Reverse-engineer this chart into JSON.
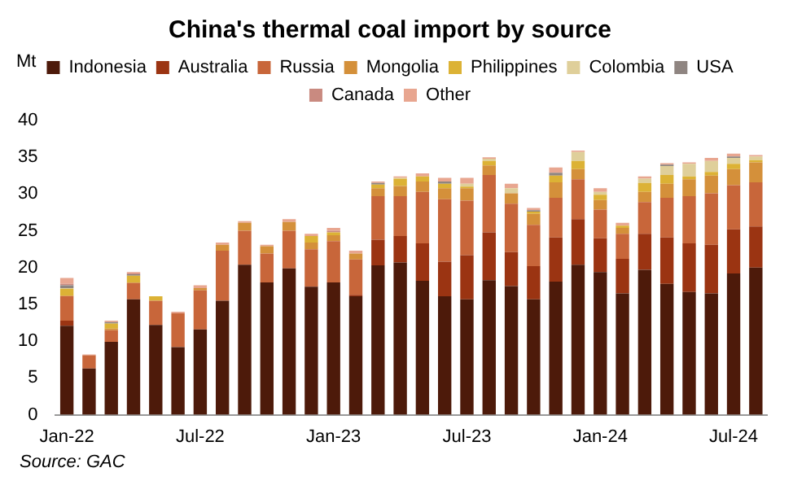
{
  "chart_data": {
    "type": "bar",
    "stacked": true,
    "title": "China's thermal coal import by source",
    "ylabel": "Mt",
    "annotations": [
      "Source: GAC"
    ],
    "categories": [
      "Jan-22",
      null,
      null,
      null,
      null,
      null,
      "Jul-22",
      null,
      null,
      null,
      null,
      null,
      "Jan-23",
      null,
      null,
      null,
      null,
      null,
      "Jul-23",
      null,
      null,
      null,
      null,
      null,
      "Jan-24",
      null,
      null,
      null,
      null,
      null,
      "Jul-24",
      null
    ],
    "ylim": [
      0,
      40
    ],
    "yticks": [
      0,
      5,
      10,
      15,
      20,
      25,
      30,
      35,
      40
    ],
    "grid": false,
    "legend": "top",
    "series": [
      {
        "name": "Indonesia",
        "color": "#4d1a0a",
        "values": [
          12.1,
          6.3,
          9.9,
          15.7,
          12.2,
          9.2,
          11.6,
          15.5,
          20.4,
          18.0,
          19.9,
          17.4,
          18.0,
          16.1,
          20.3,
          20.7,
          18.2,
          16.1,
          15.7,
          18.3,
          17.5,
          15.7,
          18.1,
          20.4,
          19.4,
          16.5,
          19.7,
          17.8,
          16.7,
          16.5,
          19.2,
          20.0
        ]
      },
      {
        "name": "Australia",
        "color": "#9b3412",
        "values": [
          0.7,
          0,
          0,
          0,
          0,
          0,
          0,
          0,
          0,
          0,
          0,
          0,
          0,
          0.2,
          3.5,
          3.6,
          5.1,
          4.7,
          6.0,
          6.5,
          4.6,
          4.5,
          6.0,
          6.2,
          4.6,
          4.7,
          4.9,
          6.3,
          6.6,
          6.6,
          6.0,
          5.6
        ]
      },
      {
        "name": "Russia",
        "color": "#c8663a",
        "values": [
          3.3,
          1.8,
          1.6,
          2.2,
          3.3,
          4.6,
          5.3,
          6.8,
          4.6,
          3.9,
          5.1,
          5.1,
          5.6,
          4.8,
          5.9,
          5.4,
          7.0,
          8.5,
          7.4,
          7.8,
          6.6,
          5.6,
          5.4,
          5.4,
          3.9,
          3.4,
          4.3,
          5.4,
          6.4,
          7.0,
          6.0,
          6.0
        ]
      },
      {
        "name": "Mongolia",
        "color": "#d4903a",
        "values": [
          0.1,
          0,
          0.2,
          0.1,
          0,
          0,
          0.3,
          0.8,
          1.1,
          1.0,
          1.2,
          0.9,
          0.8,
          0.8,
          1.1,
          1.4,
          1.4,
          1.5,
          1.7,
          1.3,
          1.4,
          1.5,
          2.1,
          1.4,
          1.3,
          0.8,
          1.4,
          1.9,
          2.3,
          2.4,
          2.2,
          2.7
        ]
      },
      {
        "name": "Philippines",
        "color": "#dcb235",
        "values": [
          0.9,
          0,
          0.7,
          0.9,
          0.6,
          0,
          0,
          0,
          0,
          0,
          0,
          0.9,
          0.4,
          0,
          0.5,
          1.0,
          0.7,
          0.6,
          0.2,
          0.6,
          0,
          0.3,
          0.9,
          1.1,
          0.7,
          0.3,
          1.2,
          1.2,
          0.4,
          0.5,
          0.7,
          0.3
        ]
      },
      {
        "name": "Colombia",
        "color": "#dfcf9a",
        "values": [
          0.1,
          0,
          0,
          0,
          0,
          0,
          0,
          0,
          0,
          0,
          0,
          0,
          0,
          0,
          0,
          0.1,
          0,
          0,
          0.4,
          0.3,
          0.7,
          0,
          0,
          1.2,
          0.4,
          0,
          0.6,
          1.2,
          1.7,
          1.5,
          0.8,
          0.5
        ]
      },
      {
        "name": "USA",
        "color": "#8f8581",
        "values": [
          0.4,
          0,
          0.2,
          0.2,
          0,
          0,
          0,
          0,
          0,
          0,
          0,
          0,
          0,
          0,
          0.2,
          0,
          0,
          0.3,
          0,
          0,
          0,
          0.2,
          0.4,
          0,
          0,
          0,
          0,
          0.2,
          0,
          0,
          0.2,
          0
        ]
      },
      {
        "name": "Canada",
        "color": "#c98a80",
        "values": [
          0.2,
          0,
          0,
          0.1,
          0,
          0,
          0,
          0,
          0,
          0,
          0,
          0,
          0.2,
          0,
          0,
          0,
          0,
          0,
          0,
          0,
          0,
          0,
          0,
          0,
          0,
          0,
          0,
          0,
          0,
          0,
          0,
          0
        ]
      },
      {
        "name": "Other",
        "color": "#e8a690",
        "values": [
          0.8,
          0.1,
          0.2,
          0.2,
          0,
          0.2,
          0.4,
          0.3,
          0.2,
          0.2,
          0.4,
          0.3,
          0.4,
          0.4,
          0.2,
          0.2,
          0.4,
          0.5,
          0.8,
          0.2,
          0.6,
          0.3,
          0.7,
          0.2,
          0.5,
          0.4,
          0.3,
          0.2,
          0.2,
          0.4,
          0.4,
          0.2
        ]
      }
    ]
  }
}
